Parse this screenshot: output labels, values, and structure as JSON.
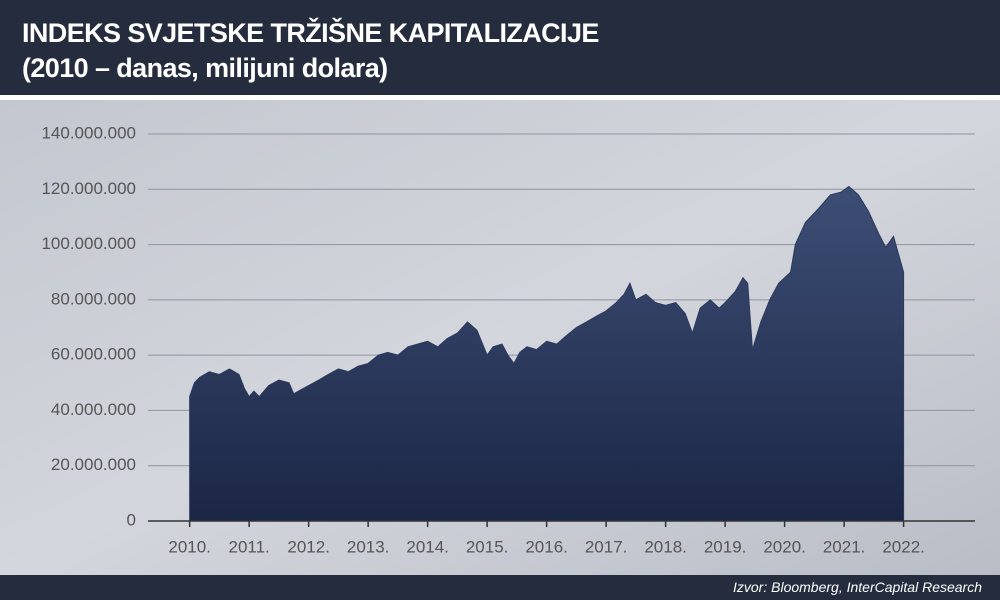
{
  "chart_data": {
    "type": "area",
    "title": "INDEKS SVJETSKE TRŽIŠNE KAPITALIZACIJE",
    "subtitle": "(2010 – danas, milijuni dolara)",
    "source": "Izvor: Bloomberg, InterCapital Research",
    "color": "#2c3a5e",
    "grid": true,
    "xlim": [
      2009.3,
      2023.2
    ],
    "xticks": [
      {
        "value": 2010,
        "label": "2010."
      },
      {
        "value": 2011,
        "label": "2011."
      },
      {
        "value": 2012,
        "label": "2012."
      },
      {
        "value": 2013,
        "label": "2013."
      },
      {
        "value": 2014,
        "label": "2014."
      },
      {
        "value": 2015,
        "label": "2015."
      },
      {
        "value": 2016,
        "label": "2016."
      },
      {
        "value": 2017,
        "label": "2017."
      },
      {
        "value": 2018,
        "label": "2018."
      },
      {
        "value": 2019,
        "label": "2019."
      },
      {
        "value": 2020,
        "label": "2020."
      },
      {
        "value": 2021,
        "label": "2021."
      },
      {
        "value": 2022,
        "label": "2022."
      }
    ],
    "ylim": [
      0,
      140000000
    ],
    "yticks": [
      0,
      {
        "value": 20000000,
        "label": "20.000.000"
      },
      {
        "value": 40000000,
        "label": "40.000.000"
      },
      {
        "value": 60000000,
        "label": "60.000.000"
      },
      {
        "value": 80000000,
        "label": "80.000.000"
      },
      {
        "value": 100000000,
        "label": "100.000.000"
      },
      {
        "value": 120000000,
        "label": "120.000.000"
      },
      {
        "value": 140000000,
        "label": "140.000.000"
      }
    ],
    "x": [
      2010.0,
      2010.08,
      2010.17,
      2010.33,
      2010.5,
      2010.67,
      2010.83,
      2010.92,
      2011.0,
      2011.08,
      2011.17,
      2011.33,
      2011.5,
      2011.67,
      2011.75,
      2011.83,
      2012.0,
      2012.17,
      2012.33,
      2012.5,
      2012.67,
      2012.83,
      2013.0,
      2013.17,
      2013.33,
      2013.5,
      2013.67,
      2013.83,
      2014.0,
      2014.17,
      2014.33,
      2014.5,
      2014.67,
      2014.83,
      2015.0,
      2015.1,
      2015.25,
      2015.35,
      2015.45,
      2015.55,
      2015.67,
      2015.83,
      2016.0,
      2016.17,
      2016.33,
      2016.5,
      2016.67,
      2016.83,
      2017.0,
      2017.17,
      2017.3,
      2017.4,
      2017.5,
      2017.67,
      2017.83,
      2018.0,
      2018.17,
      2018.33,
      2018.45,
      2018.58,
      2018.75,
      2018.9,
      2019.0,
      2019.17,
      2019.3,
      2019.38,
      2019.46,
      2019.6,
      2019.75,
      2019.9,
      2020.0,
      2020.1,
      2020.18,
      2020.35,
      2020.57,
      2020.77,
      2020.95,
      2021.08,
      2021.24,
      2021.41,
      2021.58,
      2021.7,
      2021.83,
      2022.0
    ],
    "values": [
      45000000,
      50000000,
      52000000,
      54000000,
      53000000,
      55000000,
      53000000,
      48000000,
      45000000,
      47000000,
      45000000,
      49000000,
      51000000,
      50000000,
      46000000,
      47000000,
      49000000,
      51000000,
      53000000,
      55000000,
      54000000,
      56000000,
      57000000,
      60000000,
      61000000,
      60000000,
      63000000,
      64000000,
      65000000,
      63000000,
      66000000,
      68000000,
      72000000,
      69000000,
      60000000,
      63000000,
      64000000,
      60000000,
      57000000,
      61000000,
      63000000,
      62000000,
      65000000,
      64000000,
      67000000,
      70000000,
      72000000,
      74000000,
      76000000,
      79000000,
      82000000,
      86000000,
      80000000,
      82000000,
      79000000,
      78000000,
      79000000,
      75000000,
      68000000,
      77000000,
      80000000,
      77000000,
      79000000,
      83000000,
      88000000,
      86000000,
      62000000,
      72000000,
      80000000,
      86000000,
      88000000,
      90000000,
      100000000,
      108000000,
      113000000,
      118000000,
      119000000,
      121000000,
      118000000,
      112000000,
      104000000,
      99000000,
      103000000,
      90000000
    ]
  }
}
